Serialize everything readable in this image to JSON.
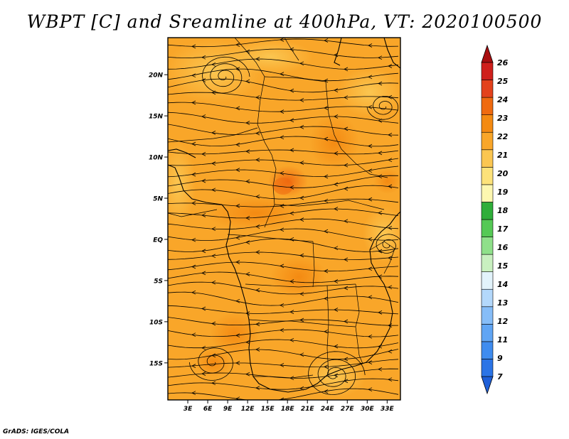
{
  "title": "WBPT [C] and Sreamline at 400hPa, VT: 2020100500",
  "credit": "GrADS: IGES/COLA",
  "map": {
    "variable": "WBPT",
    "units": "C",
    "level": "400hPa",
    "valid_time": "2020100500",
    "lat_labels": [
      "20N",
      "15N",
      "10N",
      "5N",
      "EQ",
      "5S",
      "10S",
      "15S"
    ],
    "lon_labels": [
      "3E",
      "6E",
      "9E",
      "12E",
      "15E",
      "18E",
      "21E",
      "24E",
      "27E",
      "30E",
      "33E"
    ],
    "lat_range": [
      -19.5,
      24.5
    ],
    "lon_range": [
      0,
      35
    ]
  },
  "colorbar": {
    "labels": [
      "7",
      "9",
      "11",
      "12",
      "13",
      "14",
      "15",
      "16",
      "17",
      "18",
      "19",
      "20",
      "21",
      "22",
      "23",
      "24",
      "25",
      "26"
    ],
    "colors": [
      "#1e5fd8",
      "#2b74e6",
      "#3f8cef",
      "#60a5f4",
      "#86bdf8",
      "#b3d8fb",
      "#e2f3fb",
      "#c9f0c0",
      "#8fe08a",
      "#55c955",
      "#2fae3a",
      "#fdf7b0",
      "#fde27a",
      "#fbc651",
      "#f9a629",
      "#f48a12",
      "#ef6a10",
      "#e3421c",
      "#cf1f1c",
      "#a80e10"
    ]
  }
}
